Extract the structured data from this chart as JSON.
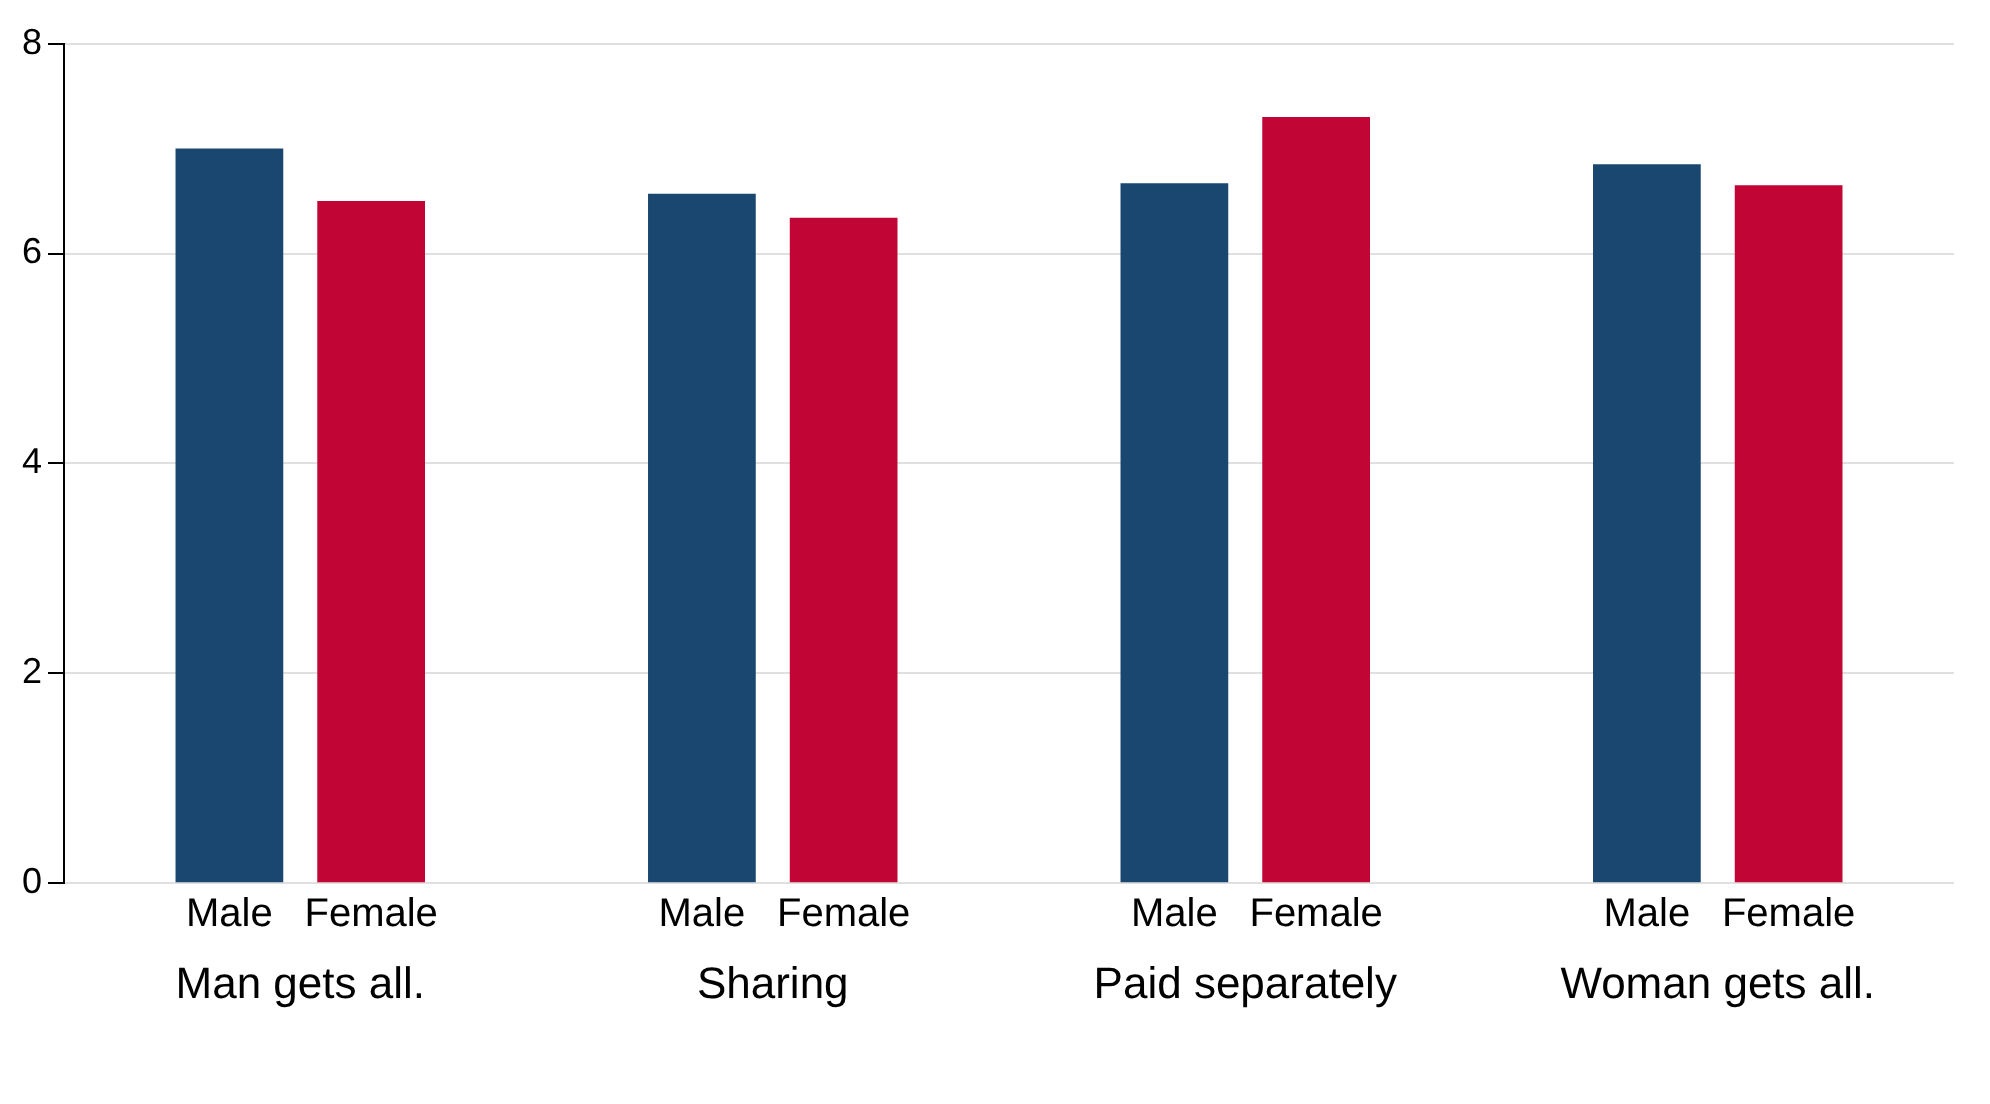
{
  "chart_data": {
    "type": "bar",
    "categories": [
      "Man gets all.",
      "Sharing",
      "Paid separately",
      "Woman gets all."
    ],
    "series": [
      {
        "name": "Male",
        "color": "#1a476f",
        "values": [
          7.0,
          6.57,
          6.67,
          6.85
        ]
      },
      {
        "name": "Female",
        "color": "#c10534",
        "values": [
          6.5,
          6.34,
          7.3,
          6.65
        ]
      }
    ],
    "ylim": [
      0,
      8
    ],
    "yticks": [
      0,
      2,
      4,
      6,
      8
    ],
    "grid": "y",
    "legend": false
  }
}
